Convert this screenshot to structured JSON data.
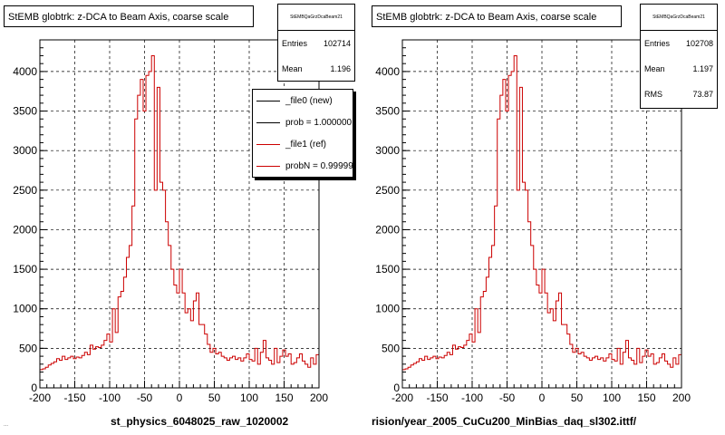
{
  "panels": [
    {
      "title": "StEMB globtrk: z-DCA to Beam Axis, coarse scale",
      "stats_header": "StEMBQaGrzDcaBeam21",
      "stats": [
        {
          "label": "Entries",
          "value": "102714"
        },
        {
          "label": "Mean",
          "value": "1.196"
        }
      ],
      "legend": [
        {
          "label": "_file0 (new)",
          "color": "#000000"
        },
        {
          "label": "prob = 1.000000",
          "color": "#000000"
        },
        {
          "label": "_file1 (ref)",
          "color": "#cc0000"
        },
        {
          "label": "probN = 0.999995",
          "color": "#cc0000"
        }
      ],
      "xfile": "st_physics_6048025_raw_1020002"
    },
    {
      "title": "StEMB globtrk: z-DCA to Beam Axis, coarse scale",
      "stats_header": "StEMBQaGrzDcaBeam21",
      "stats": [
        {
          "label": "Entries",
          "value": "102708"
        },
        {
          "label": "Mean",
          "value": "1.197"
        },
        {
          "label": "RMS",
          "value": "73.87"
        }
      ],
      "xfile": "rision/year_2005_CuCu200_MinBias_daq_sl302.ittf/"
    }
  ],
  "footer": "...",
  "chart_data": [
    {
      "type": "line",
      "step": true,
      "title": "StEMB globtrk: z-DCA to Beam Axis, coarse scale",
      "xlabel": "st_physics_6048025_raw_1020002",
      "ylabel": "",
      "xlim": [
        -200,
        200
      ],
      "ylim": [
        0,
        4400
      ],
      "xticks": [
        -200,
        -150,
        -100,
        -50,
        0,
        50,
        100,
        150,
        200
      ],
      "yticks": [
        0,
        500,
        1000,
        1500,
        2000,
        2500,
        3000,
        3500,
        4000
      ],
      "grid": true,
      "legend_position": "top-right",
      "series": [
        {
          "name": "_file1 (ref)",
          "color": "#cc0000",
          "bin_width": 4,
          "x_start": -200,
          "values": [
            230,
            240,
            260,
            290,
            310,
            330,
            370,
            350,
            400,
            360,
            380,
            400,
            370,
            390,
            380,
            410,
            450,
            420,
            540,
            490,
            520,
            510,
            540,
            600,
            680,
            580,
            1000,
            700,
            1150,
            1220,
            1400,
            1650,
            1800,
            2300,
            3400,
            3700,
            3900,
            3500,
            3950,
            4000,
            4200,
            2500,
            3800,
            2600,
            2500,
            2100,
            1800,
            1500,
            1300,
            1200,
            1500,
            1200,
            950,
            1000,
            850,
            1100,
            1200,
            800,
            800,
            680,
            550,
            450,
            500,
            430,
            450,
            400,
            380,
            350,
            380,
            400,
            360,
            380,
            340,
            380,
            430,
            360,
            340,
            500,
            300,
            450,
            600,
            380,
            350,
            300,
            500,
            320,
            400,
            480,
            400,
            430,
            300,
            320,
            380,
            430,
            340,
            300,
            260,
            380,
            300,
            420
          ]
        }
      ]
    },
    {
      "type": "line",
      "step": true,
      "title": "StEMB globtrk: z-DCA to Beam Axis, coarse scale",
      "xlabel": "rision/year_2005_CuCu200_MinBias_daq_sl302.ittf/",
      "ylabel": "",
      "xlim": [
        -200,
        200
      ],
      "ylim": [
        0,
        4400
      ],
      "xticks": [
        -200,
        -150,
        -100,
        -50,
        0,
        50,
        100,
        150,
        200
      ],
      "yticks": [
        0,
        500,
        1000,
        1500,
        2000,
        2500,
        3000,
        3500,
        4000
      ],
      "grid": true,
      "series": [
        {
          "name": "",
          "color": "#cc0000",
          "bin_width": 4,
          "x_start": -200,
          "values": [
            230,
            240,
            260,
            290,
            310,
            330,
            370,
            350,
            400,
            360,
            380,
            400,
            370,
            390,
            380,
            410,
            450,
            420,
            540,
            490,
            520,
            510,
            540,
            600,
            680,
            580,
            1000,
            700,
            1150,
            1220,
            1400,
            1650,
            1800,
            2300,
            3400,
            3700,
            3900,
            3500,
            3950,
            4000,
            4200,
            2500,
            3800,
            2600,
            2500,
            2100,
            1800,
            1500,
            1300,
            1200,
            1500,
            1200,
            950,
            1000,
            850,
            1100,
            1200,
            800,
            800,
            680,
            550,
            450,
            500,
            430,
            450,
            400,
            380,
            350,
            380,
            400,
            360,
            380,
            340,
            380,
            430,
            360,
            340,
            500,
            300,
            450,
            600,
            380,
            350,
            300,
            500,
            320,
            400,
            480,
            400,
            430,
            300,
            320,
            380,
            430,
            340,
            300,
            260,
            380,
            300,
            420
          ]
        }
      ]
    }
  ]
}
